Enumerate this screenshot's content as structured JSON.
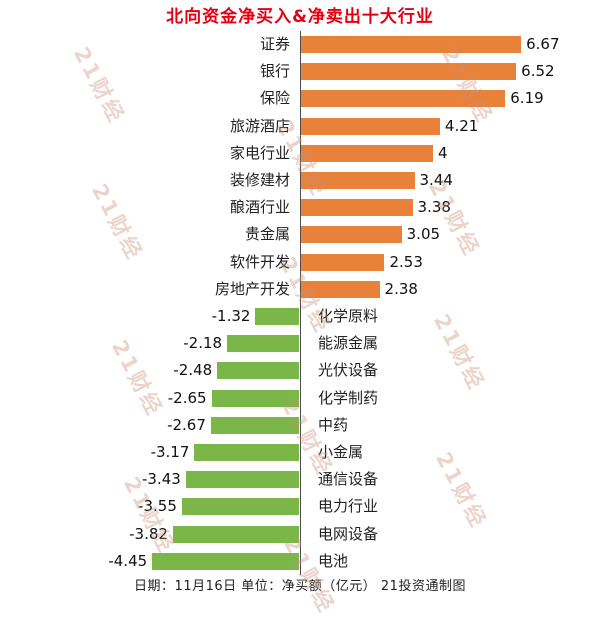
{
  "chart_data": {
    "type": "bar",
    "orientation": "horizontal",
    "title": "北向资金净买入&净卖出十大行业",
    "title_color": "#e60012",
    "categories": [
      "证券",
      "银行",
      "保险",
      "旅游酒店",
      "家电行业",
      "装修建材",
      "酿酒行业",
      "贵金属",
      "软件开发",
      "房地产开发",
      "化学原料",
      "能源金属",
      "光伏设备",
      "化学制药",
      "中药",
      "小金属",
      "通信设备",
      "电力行业",
      "电网设备",
      "电池"
    ],
    "values": [
      6.67,
      6.52,
      6.19,
      4.21,
      4,
      3.44,
      3.38,
      3.05,
      2.53,
      2.38,
      -1.32,
      -2.18,
      -2.48,
      -2.65,
      -2.67,
      -3.17,
      -3.43,
      -3.55,
      -3.82,
      -4.45
    ],
    "value_labels": [
      "6.67",
      "6.52",
      "6.19",
      "4.21",
      "4",
      "3.44",
      "3.38",
      "3.05",
      "2.53",
      "2.38",
      "-1.32",
      "-2.18",
      "-2.48",
      "-2.65",
      "-2.67",
      "-3.17",
      "-3.43",
      "-3.55",
      "-3.82",
      "-4.45"
    ],
    "positive_color": "#e8823b",
    "negative_color": "#7bb649",
    "axis_color": "#4d4d4d",
    "xlabel": "",
    "ylabel": "",
    "grid": false,
    "legend": "none",
    "footer": "日期：11月16日 单位：净买额（亿元） 21投资通制图",
    "watermark": "21财经",
    "unit": "亿元",
    "date": "11月16日",
    "source": "21投资通制图"
  }
}
